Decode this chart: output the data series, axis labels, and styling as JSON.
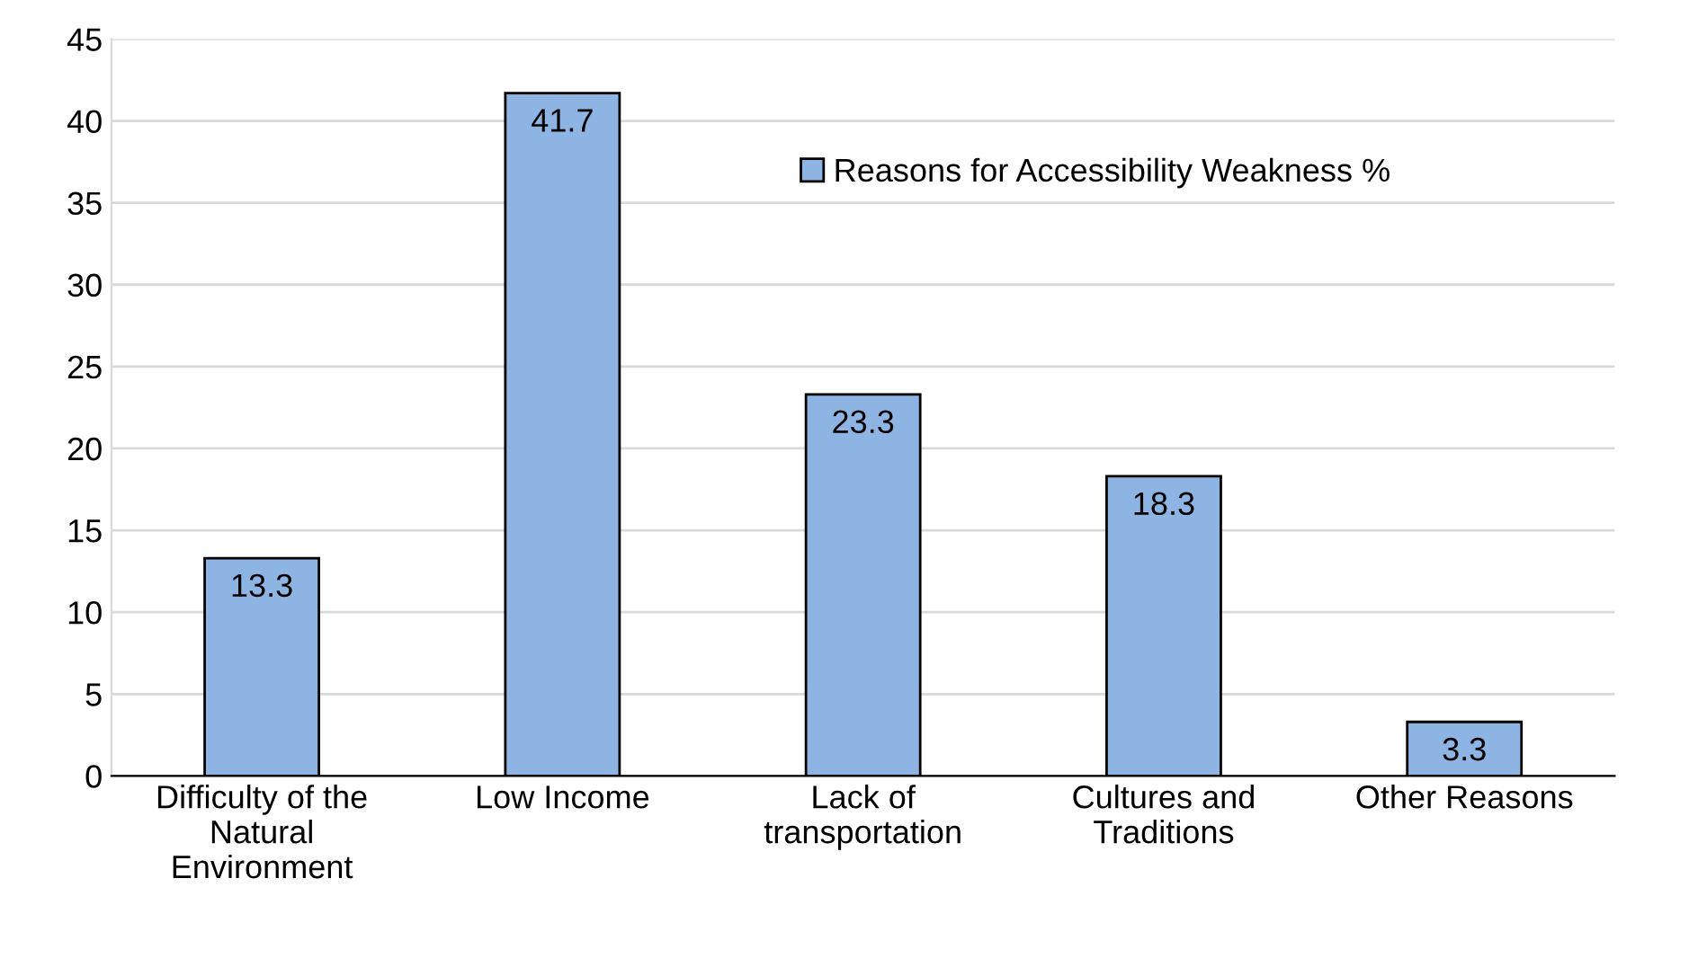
{
  "chart_data": {
    "type": "bar",
    "categories": [
      "Difficulty of the\nNatural\nEnvironment",
      "Low Income",
      "Lack of\ntransportation",
      "Cultures and\nTraditions",
      "Other Reasons"
    ],
    "series": [
      {
        "name": "Reasons for Accessibility Weakness %",
        "color": "#8eb4e3",
        "values": [
          13.3,
          41.7,
          23.3,
          18.3,
          3.3
        ]
      }
    ],
    "ylim": [
      0,
      45
    ],
    "yticks": [
      0,
      5,
      10,
      15,
      20,
      25,
      30,
      35,
      40,
      45
    ],
    "grid": "y",
    "legend": "top right",
    "data_labels": true
  }
}
